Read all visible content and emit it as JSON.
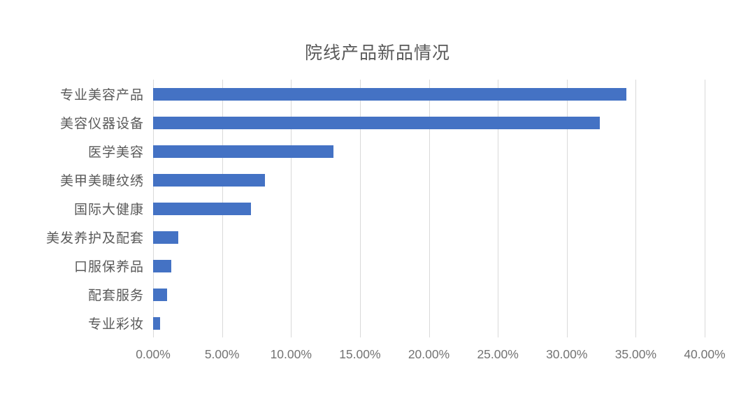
{
  "chart_data": {
    "type": "bar",
    "orientation": "horizontal",
    "title": "院线产品新品情况",
    "categories": [
      "专业美容产品",
      "美容仪器设备",
      "医学美容",
      "美甲美睫纹绣",
      "国际大健康",
      "美发养护及配套",
      "口服保养品",
      "配套服务",
      "专业彩妆"
    ],
    "values": [
      34.3,
      32.4,
      13.1,
      8.1,
      7.1,
      1.8,
      1.3,
      1.0,
      0.5
    ],
    "unit": "%",
    "xlabel": "",
    "ylabel": "",
    "xlim": [
      0,
      40
    ],
    "x_tick_step": 5,
    "x_tick_labels": [
      "0.00%",
      "5.00%",
      "10.00%",
      "15.00%",
      "20.00%",
      "25.00%",
      "30.00%",
      "35.00%",
      "40.00%"
    ],
    "grid": true,
    "legend_position": "none",
    "colors": {
      "bar": "#4472C4",
      "gridline": "#d9d9d9",
      "title_text": "#595959",
      "category_text": "#595959",
      "tick_text": "#737373",
      "background": "#ffffff"
    }
  }
}
